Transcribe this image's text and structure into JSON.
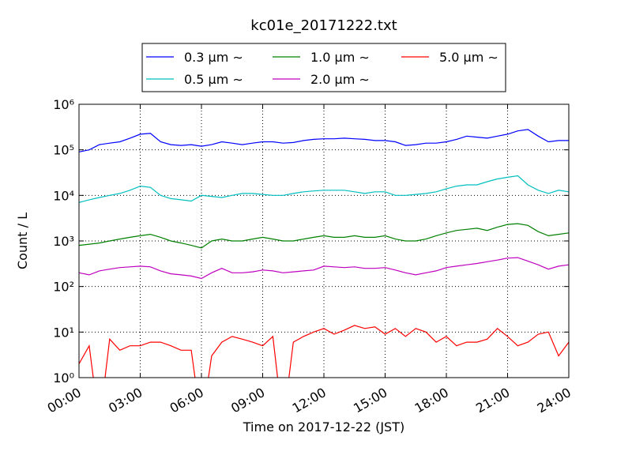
{
  "chart_data": {
    "type": "line",
    "title": "kc01e_20171222.txt",
    "xlabel": "Time on 2017-12-22 (JST)",
    "ylabel": "Count / L",
    "log_y": true,
    "grid": true,
    "legend": "top",
    "xlim": [
      0,
      24
    ],
    "ylim": [
      1,
      1000000
    ],
    "xticks": [
      {
        "value": 0,
        "label": "00:00"
      },
      {
        "value": 3,
        "label": "03:00"
      },
      {
        "value": 6,
        "label": "06:00"
      },
      {
        "value": 9,
        "label": "09:00"
      },
      {
        "value": 12,
        "label": "12:00"
      },
      {
        "value": 15,
        "label": "15:00"
      },
      {
        "value": 18,
        "label": "18:00"
      },
      {
        "value": 21,
        "label": "21:00"
      },
      {
        "value": 24,
        "label": "24:00"
      }
    ],
    "yticks": [
      {
        "value": 1,
        "label": "10⁰"
      },
      {
        "value": 10,
        "label": "10¹"
      },
      {
        "value": 100,
        "label": "10²"
      },
      {
        "value": 1000,
        "label": "10³"
      },
      {
        "value": 10000,
        "label": "10⁴"
      },
      {
        "value": 100000,
        "label": "10⁵"
      },
      {
        "value": 1000000,
        "label": "10⁶"
      }
    ],
    "x": [
      0,
      0.5,
      1,
      1.5,
      2,
      2.5,
      3,
      3.5,
      4,
      4.5,
      5,
      5.5,
      6,
      6.5,
      7,
      7.5,
      8,
      8.5,
      9,
      9.5,
      10,
      10.5,
      11,
      11.5,
      12,
      12.5,
      13,
      13.5,
      14,
      14.5,
      15,
      15.5,
      16,
      16.5,
      17,
      17.5,
      18,
      18.5,
      19,
      19.5,
      20,
      20.5,
      21,
      21.5,
      22,
      22.5,
      23,
      23.5,
      24
    ],
    "series": [
      {
        "name": "0.3 μm ∼",
        "color": "#0000ff",
        "values": [
          90000,
          100000,
          130000,
          140000,
          150000,
          180000,
          220000,
          230000,
          150000,
          130000,
          125000,
          130000,
          120000,
          130000,
          150000,
          140000,
          130000,
          140000,
          150000,
          150000,
          140000,
          145000,
          160000,
          170000,
          175000,
          175000,
          180000,
          175000,
          170000,
          160000,
          160000,
          150000,
          125000,
          130000,
          140000,
          140000,
          150000,
          170000,
          200000,
          190000,
          180000,
          200000,
          220000,
          260000,
          280000,
          200000,
          150000,
          160000,
          160000
        ]
      },
      {
        "name": "0.5 μm ∼",
        "color": "#00bfbf",
        "values": [
          7000,
          8000,
          9000,
          10000,
          11000,
          13000,
          16000,
          15000,
          10000,
          8500,
          8000,
          7500,
          10000,
          9500,
          9000,
          10000,
          11000,
          11000,
          10500,
          10000,
          10000,
          11000,
          12000,
          12500,
          13000,
          13000,
          13000,
          12000,
          11000,
          12000,
          12000,
          10000,
          10000,
          10500,
          11000,
          12000,
          14000,
          16000,
          17000,
          17000,
          20000,
          23000,
          25000,
          27000,
          17000,
          13000,
          11000,
          13000,
          12000
        ]
      },
      {
        "name": "1.0 μm ∼",
        "color": "#008000",
        "values": [
          800,
          850,
          900,
          1000,
          1100,
          1200,
          1300,
          1400,
          1200,
          1000,
          900,
          800,
          700,
          1000,
          1100,
          1000,
          1000,
          1100,
          1200,
          1100,
          1000,
          1000,
          1100,
          1200,
          1300,
          1200,
          1200,
          1300,
          1200,
          1200,
          1300,
          1100,
          1000,
          1000,
          1100,
          1300,
          1500,
          1700,
          1800,
          1900,
          1700,
          2000,
          2300,
          2400,
          2200,
          1600,
          1300,
          1400,
          1500
        ]
      },
      {
        "name": "2.0 μm ∼",
        "color": "#bf00bf",
        "values": [
          200,
          180,
          220,
          240,
          260,
          270,
          280,
          270,
          220,
          190,
          180,
          170,
          150,
          200,
          250,
          200,
          200,
          210,
          230,
          220,
          200,
          210,
          220,
          230,
          280,
          270,
          260,
          270,
          250,
          250,
          260,
          230,
          200,
          180,
          200,
          220,
          260,
          280,
          300,
          320,
          350,
          380,
          420,
          430,
          360,
          300,
          240,
          280,
          300
        ]
      },
      {
        "name": "5.0 μm ∼",
        "color": "#ff0000",
        "values": [
          2,
          5,
          0,
          7,
          4,
          5,
          5,
          6,
          6,
          5,
          4,
          4,
          0,
          3,
          6,
          8,
          7,
          6,
          5,
          8,
          0,
          6,
          8,
          10,
          12,
          9,
          11,
          14,
          12,
          13,
          9,
          12,
          8,
          12,
          10,
          6,
          8,
          5,
          6,
          6,
          7,
          12,
          8,
          5,
          6,
          9,
          10,
          3,
          6
        ]
      }
    ]
  }
}
